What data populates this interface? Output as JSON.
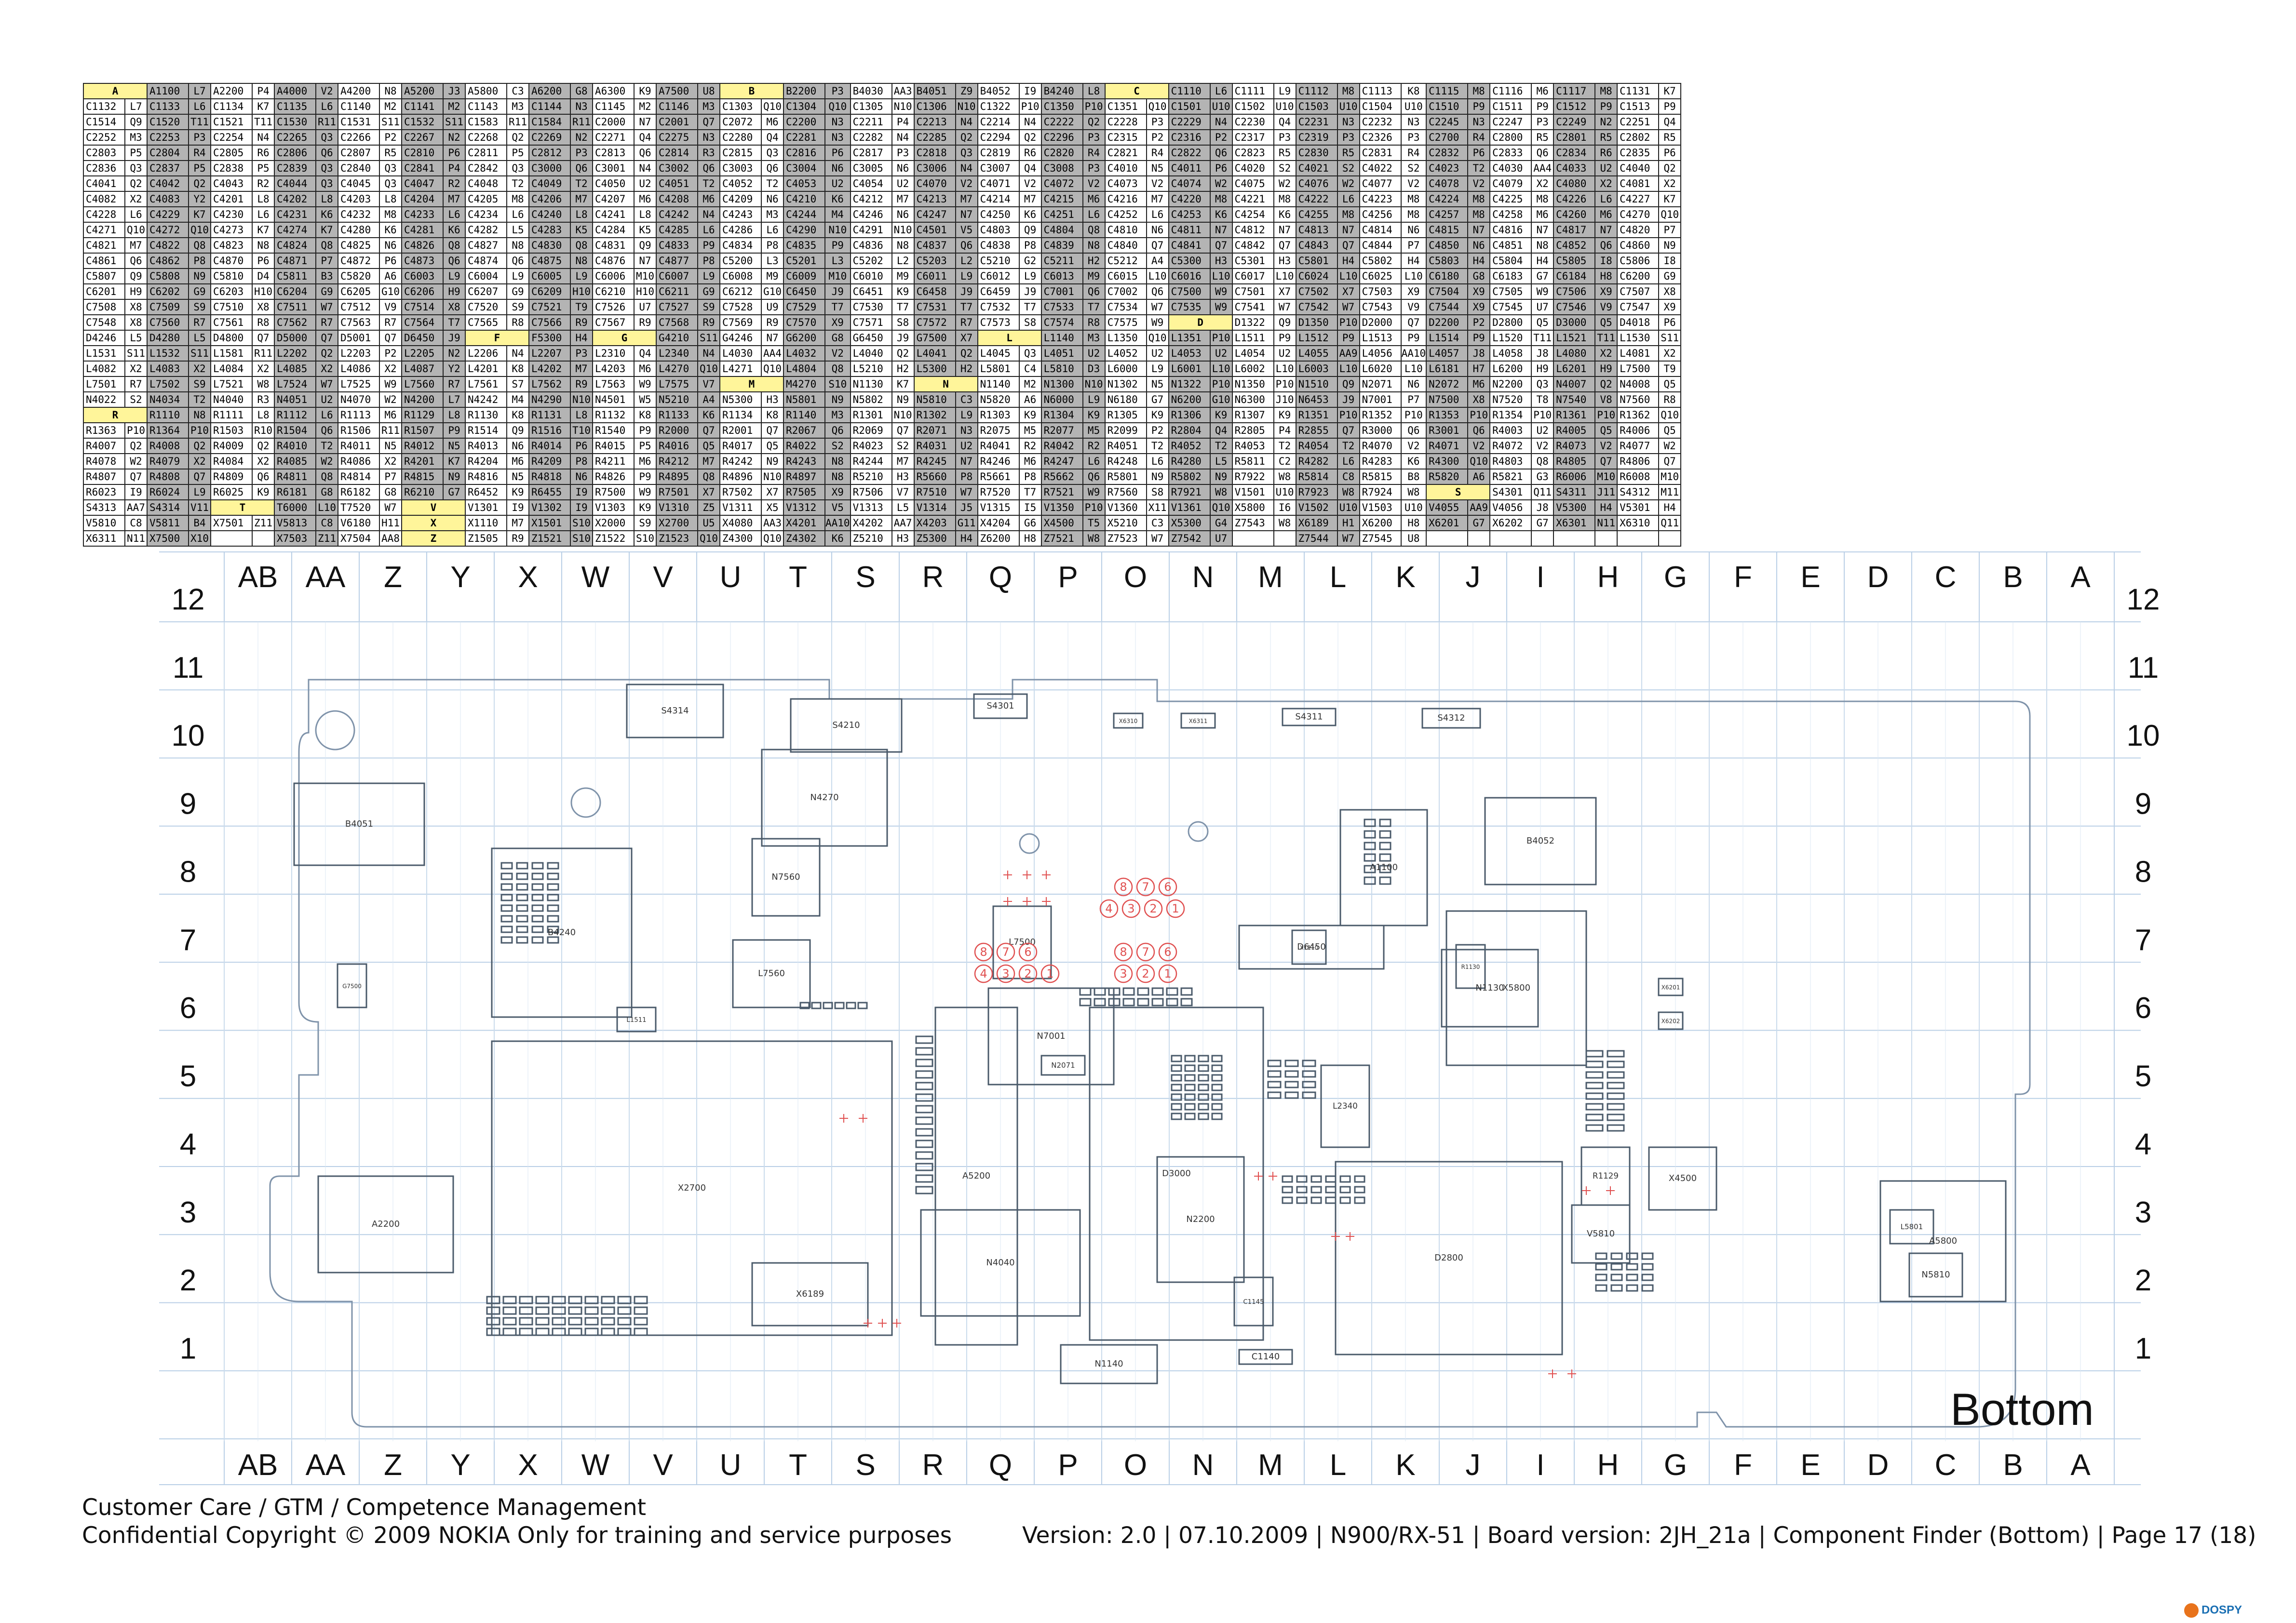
{
  "finder_columns": [
    [
      "A",
      "C1132 L7",
      "C1514 Q9",
      "C2252 M3",
      "C2803 P5",
      "C2836 Q3",
      "C4041 Q2",
      "C4082 X2",
      "C4228 L6",
      "C4271 Q10",
      "C4821 M7",
      "C4861 Q6",
      "C5807 Q9",
      "C6201 H9",
      "C7508 X8",
      "C7548 X8",
      "D4246 L5",
      "L1531 S11",
      "L4082 X2",
      "L7501 R7",
      "N4022 S2",
      "R",
      "R1363 P10",
      "R4007 Q2",
      "R4078 W2",
      "R4807 Q7",
      "R6023 I9",
      "S4313 AA7",
      "V5810 C8",
      "X6311 N11"
    ],
    [
      "A1100 L7",
      "C1133 L6",
      "C1520 T11",
      "C2253 P3",
      "C2804 R4",
      "C2837 P5",
      "C4042 Q2",
      "C4083 Y2",
      "C4229 K7",
      "C4272 Q10",
      "C4822 Q8",
      "C4862 P8",
      "C5808 N9",
      "C6202 G9",
      "C7509 S9",
      "C7560 R7",
      "D4280 L5",
      "L1532 S11",
      "L4083 X2",
      "L7502 S9",
      "N4034 T2",
      "R1110 N8",
      "R1364 P10",
      "R4008 Q2",
      "R4079 X2",
      "R4808 Q7",
      "R6024 L9",
      "S4314 V11",
      "V5811 B4",
      "X7500 X10"
    ],
    [
      "A2200 P4",
      "C1134 K7",
      "C1521 T11",
      "C2254 N4",
      "C2805 R6",
      "C2838 P5",
      "C4043 R2",
      "C4201 L8",
      "C4230 L6",
      "C4273 K7",
      "C4823 N8",
      "C4870 P6",
      "C5810 D4",
      "C6203 H10",
      "C7510 X8",
      "C7561 R8",
      "D4800 Q7",
      "L1581 R11",
      "L4084 X2",
      "L7521 W8",
      "N4040 R3",
      "R1111 L8",
      "R1503 R10",
      "R4009 Q2",
      "R4084 X2",
      "R4809 Q6",
      "R6025 K9",
      "T",
      "X7501 Z11"
    ],
    [
      "A4000 V2",
      "C1135 L6",
      "C1530 R11",
      "C2265 Q3",
      "C2806 Q6",
      "C2839 Q3",
      "C4044 Q3",
      "C4202 L8",
      "C4231 K6",
      "C4274 K7",
      "C4824 Q8",
      "C4871 P7",
      "C5811 B3",
      "C6204 G9",
      "C7511 W7",
      "C7562 R7",
      "D5000 Q7",
      "L2202 Q2",
      "L4085 X2",
      "L7524 W7",
      "N4051 U2",
      "R1112 L6",
      "R1504 Q6",
      "R4010 T2",
      "R4085 W2",
      "R4811 Q8",
      "R6181 G8",
      "T6000 L10",
      "V5813 C8",
      "X7503 Z11"
    ],
    [
      "A4200 N8",
      "C1140 M2",
      "C1531 S11",
      "C2266 P2",
      "C2807 R5",
      "C2840 Q3",
      "C4045 Q3",
      "C4203 L8",
      "C4232 M8",
      "C4280 K6",
      "C4825 N6",
      "C4872 P6",
      "C5820 A6",
      "C6205 G10",
      "C7512 V9",
      "C7563 R7",
      "D5001 Q7",
      "L2203 P2",
      "L4086 X2",
      "L7525 W9",
      "N4070 W2",
      "R1113 M6",
      "R1506 R11",
      "R4011 N5",
      "R4086 X2",
      "R4814 P7",
      "R6182 G8",
      "T7520 W7",
      "V6180 H11",
      "X7504 AA8"
    ],
    [
      "A5200 J3",
      "C1141 M2",
      "C1532 S11",
      "C2267 N2",
      "C2810 P6",
      "C2841 P4",
      "C4047 R2",
      "C4204 M7",
      "C4233 L6",
      "C4281 K6",
      "C4826 Q8",
      "C4873 Q6",
      "C6003 L9",
      "C6206 H9",
      "C7514 X8",
      "C7564 T7",
      "D6450 J9",
      "L2205 N2",
      "L4087 Y2",
      "L7560 R7",
      "N4200 L7",
      "R1129 L8",
      "R1507 P9",
      "R4012 N5",
      "R4201 K7",
      "R4815 N9",
      "R6210 G7",
      "V",
      "X",
      "Z"
    ],
    [
      "A5800 C3",
      "C1143 M3",
      "C1583 R11",
      "C2268 Q2",
      "C2811 P5",
      "C2842 Q3",
      "C4048 T2",
      "C4205 M8",
      "C4234 L6",
      "C4282 L5",
      "C4827 N8",
      "C4874 Q6",
      "C6004 L9",
      "C6207 G9",
      "C7520 S9",
      "C7565 R8",
      "F",
      "L2206 N4",
      "L4201 K8",
      "L7561 S7",
      "N4242 M4",
      "R1130 K8",
      "R1514 Q9",
      "R4013 N6",
      "R4204 M6",
      "R4816 N5",
      "R6452 K9",
      "V1301 I9",
      "X1110 M7",
      "Z1505 R9"
    ],
    [
      "A6200 G8",
      "C1144 N3",
      "C1584 R11",
      "C2269 N2",
      "C2812 P3",
      "C3000 Q6",
      "C4049 T2",
      "C4206 M7",
      "C4240 L8",
      "C4283 K5",
      "C4830 Q8",
      "C4875 N8",
      "C6005 L9",
      "C6209 H10",
      "C7521 T9",
      "C7566 R9",
      "F5300 H4",
      "L2207 P3",
      "L4202 M7",
      "L7562 R9",
      "N4290 N10",
      "R1131 L8",
      "R1516 T10",
      "R4014 P6",
      "R4209 P8",
      "R4818 N6",
      "R6455 I9",
      "V1302 I9",
      "X1501 S10",
      "Z1521 S10"
    ],
    [
      "A6300 K9",
      "C1145 M2",
      "C2000 N7",
      "C2271 Q4",
      "C2813 Q6",
      "C3001 N4",
      "C4050 U2",
      "C4207 M6",
      "C4241 L8",
      "C4284 K5",
      "C4831 Q9",
      "C4876 N7",
      "C6006 M10",
      "C6210 H10",
      "C7526 U7",
      "C7567 R9",
      "G",
      "L2310 Q4",
      "L4203 M6",
      "L7563 W9",
      "N4501 W5",
      "R1132 K8",
      "R1540 P9",
      "R4015 P5",
      "R4211 M6",
      "R4826 P9",
      "R7500 W9",
      "V1303 K9",
      "X2000 S9",
      "Z1522 S10"
    ],
    [
      "A7500 U8",
      "C1146 M3",
      "C2001 Q7",
      "C2275 N3",
      "C2814 R3",
      "C3002 Q6",
      "C4051 T2",
      "C4208 M6",
      "C4242 N4",
      "C4285 L6",
      "C4833 P9",
      "C4877 P8",
      "C6007 L9",
      "C6211 G9",
      "C7527 S9",
      "C7568 R9",
      "G4210 S11",
      "L2340 N4",
      "L4270 Q10",
      "L7575 V7",
      "N5210 A4",
      "R1133 K6",
      "R2000 Q7",
      "R4016 Q5",
      "R4212 M7",
      "R4895 Q8",
      "R7501 X7",
      "V1310 Z5",
      "X2700 U5",
      "Z1523 Q10"
    ],
    [
      "B",
      "C1303 Q10",
      "C2072 M6",
      "C2280 Q4",
      "C2815 Q3",
      "C3003 Q6",
      "C4052 T2",
      "C4209 N6",
      "C4243 M3",
      "C4286 L6",
      "C4834 P8",
      "C5200 L3",
      "C6008 M9",
      "C6212 G10",
      "C7528 U9",
      "C7569 R9",
      "G4246 N7",
      "L4030 AA4",
      "L4271 Q10",
      "M",
      "N5300 H3",
      "R1134 K8",
      "R2001 Q7",
      "R4017 Q5",
      "R4242 N9",
      "R4896 N10",
      "R7502 X7",
      "V1311 X5",
      "X4080 AA3",
      "Z4300 Q10"
    ],
    [
      "B2200 P3",
      "C1304 Q10",
      "C2200 N3",
      "C2281 N3",
      "C2816 P6",
      "C3004 N6",
      "C4053 U2",
      "C4210 K6",
      "C4244 M4",
      "C4290 N10",
      "C4835 P9",
      "C5201 L3",
      "C6009 M10",
      "C6450 J9",
      "C7529 T7",
      "C7570 X9",
      "G6200 G8",
      "L4032 V2",
      "L4804 Q8",
      "M4270 S10",
      "N5801 N9",
      "R1140 M3",
      "R2067 Q6",
      "R4022 S2",
      "R4243 N8",
      "R4897 N8",
      "R7505 X9",
      "V1312 V5",
      "X4201 AA10",
      "Z4302 K6"
    ],
    [
      "B4030 AA3",
      "C1305 N10",
      "C2211 P4",
      "C2282 N4",
      "C2817 P3",
      "C3005 N6",
      "C4054 U2",
      "C4212 M7",
      "C4246 N6",
      "C4291 N10",
      "C4836 N8",
      "C5202 L2",
      "C6010 M9",
      "C6451 K9",
      "C7530 T7",
      "C7571 S8",
      "G6450 J9",
      "L4040 Q2",
      "L5210 H2",
      "N1130 K7",
      "N5802 N9",
      "R1301 N10",
      "R2069 Q7",
      "R4023 S2",
      "R4244 M7",
      "R5210 H3",
      "R7506 V7",
      "V1313 L5",
      "X4202 AA7",
      "Z5210 H3"
    ],
    [
      "B4051 Z9",
      "C1306 N10",
      "C2213 N4",
      "C2285 Q2",
      "C2818 Q3",
      "C3006 N4",
      "C4070 V2",
      "C4213 M7",
      "C4247 N7",
      "C4501 V5",
      "C4837 Q6",
      "C5203 L2",
      "C6011 L9",
      "C6458 J9",
      "C7531 T7",
      "C7572 R7",
      "G7500 X7",
      "L4041 Q2",
      "L5300 H2",
      "N",
      "N5810 C3",
      "R1302 L9",
      "R2071 N3",
      "R4031 U2",
      "R4245 N7",
      "R5660 P8",
      "R7510 W7",
      "V1314 J5",
      "X4203 G11",
      "Z5300 H4"
    ],
    [
      "B4052 I9",
      "C1322 P10",
      "C2214 N4",
      "C2294 Q2",
      "C2819 R6",
      "C3007 Q4",
      "C4071 V2",
      "C4214 M7",
      "C4250 K6",
      "C4803 Q9",
      "C4838 P8",
      "C5210 G2",
      "C6012 L9",
      "C6459 J9",
      "C7532 T7",
      "C7573 S8",
      "L",
      "L4045 Q3",
      "L5801 C4",
      "N1140 M2",
      "N5820 A6",
      "R1303 K9",
      "R2075 M5",
      "R4041 R2",
      "R4246 M6",
      "R5661 P8",
      "R7520 T7",
      "V1315 I5",
      "X4204 G6",
      "Z6200 H8"
    ],
    [
      "B4240 L8",
      "C1350 P10",
      "C2222 Q2",
      "C2296 P3",
      "C2820 R4",
      "C3008 P3",
      "C4072 V2",
      "C4215 M6",
      "C4251 L6",
      "C4804 Q8",
      "C4839 N8",
      "C5211 H2",
      "C6013 M9",
      "C7001 Q6",
      "C7533 T7",
      "C7574 R8",
      "L1140 M3",
      "L4051 U2",
      "L5810 D3",
      "N1300 N10",
      "N6000 L9",
      "R1304 K9",
      "R2077 M5",
      "R4042 R2",
      "R4247 L6",
      "R5662 Q6",
      "R7521 W9",
      "V1350 P10",
      "X4500 T5",
      "Z7521 W8"
    ],
    [
      "C",
      "C1351 Q10",
      "C2228 P3",
      "C2315 P2",
      "C2821 R4",
      "C4010 N5",
      "C4073 V2",
      "C4216 M7",
      "C4252 L6",
      "C4810 N6",
      "C4840 Q7",
      "C5212 A4",
      "C6015 L10",
      "C7002 Q6",
      "C7534 W7",
      "C7575 W9",
      "L1350 Q10",
      "L4052 U2",
      "L6000 L9",
      "N1302 N5",
      "N6180 G7",
      "R1305 K9",
      "R2099 P2",
      "R4051 T2",
      "R4248 L6",
      "R5801 N9",
      "R7560 S8",
      "V1360 X11",
      "X5210 C3",
      "Z7523 W7"
    ],
    [
      "C1110 L6",
      "C1501 U10",
      "C2229 N4",
      "C2316 P2",
      "C2822 Q6",
      "C4011 P6",
      "C4074 W2",
      "C4220 M8",
      "C4253 K6",
      "C4811 N7",
      "C4841 Q7",
      "C5300 H3",
      "C6016 L10",
      "C7500 W9",
      "C7535 W9",
      "D",
      "L1351 P10",
      "L4053 U2",
      "L6001 L10",
      "N1322 P10",
      "N6200 G10",
      "R1306 K9",
      "R2804 Q4",
      "R4052 T2",
      "R4280 L5",
      "R5802 N9",
      "R7921 W8",
      "V1361 Q10",
      "X5300 G4",
      "Z7542 U7"
    ],
    [
      "C1111 L9",
      "C1502 U10",
      "C2230 Q4",
      "C2317 P3",
      "C2823 R5",
      "C4020 S2",
      "C4075 W2",
      "C4221 M8",
      "C4254 K6",
      "C4812 N7",
      "C4842 Q7",
      "C5301 H3",
      "C6017 L10",
      "C7501 X7",
      "C7541 W7",
      "D1322 Q9",
      "L1511 P9",
      "L4054 U2",
      "L6002 L10",
      "N1350 P10",
      "N6300 J10",
      "R1307 K9",
      "R2805 P4",
      "R4053 T2",
      "R5811 C2",
      "R7922 W8",
      "V1501 U10",
      "X5800 I6",
      "Z7543 W8"
    ],
    [
      "C1112 M8",
      "C1503 U10",
      "C2231 N3",
      "C2319 P3",
      "C2830 R5",
      "C4021 S2",
      "C4076 W2",
      "C4222 L6",
      "C4255 M8",
      "C4813 N7",
      "C4843 Q7",
      "C5801 H4",
      "C6024 L10",
      "C7502 X7",
      "C7542 W7",
      "D1350 P10",
      "L1512 P9",
      "L4055 AA9",
      "L6003 L10",
      "N1510 Q9",
      "N6453 J9",
      "R1351 P10",
      "R2855 Q7",
      "R4054 T2",
      "R4282 L6",
      "R5814 C8",
      "R7923 W8",
      "V1502 U10",
      "X6189 H1",
      "Z7544 W7"
    ],
    [
      "C1113 K8",
      "C1504 U10",
      "C2232 N3",
      "C2326 P3",
      "C2831 R4",
      "C4022 S2",
      "C4077 V2",
      "C4223 M8",
      "C4256 M8",
      "C4814 N6",
      "C4844 P7",
      "C5802 H4",
      "C6025 L10",
      "C7503 X9",
      "C7543 V9",
      "D2000 Q7",
      "L1513 P9",
      "L4056 AA10",
      "L6020 L10",
      "N2071 N6",
      "N7001 P7",
      "R1352 P10",
      "R3000 Q6",
      "R4070 V2",
      "R4283 K6",
      "R5815 B8",
      "R7924 W8",
      "V1503 U10",
      "X6200 H8",
      "Z7545 U8"
    ],
    [
      "C1115 M8",
      "C1510 P9",
      "C2245 N3",
      "C2700 R4",
      "C2832 P6",
      "C4023 T2",
      "C4078 V2",
      "C4224 M8",
      "C4257 M8",
      "C4815 N7",
      "C4850 N6",
      "C5803 H4",
      "C6180 G8",
      "C7504 X9",
      "C7544 X9",
      "D2200 P2",
      "L1514 P9",
      "L4057 J8",
      "L6181 H7",
      "N2072 M6",
      "N7500 X8",
      "R1353 P10",
      "R3001 Q6",
      "R4071 V2",
      "R4300 Q10",
      "R5820 A6",
      "S",
      "V4055 AA9",
      "X6201 G7"
    ],
    [
      "C1116 M6",
      "C1511 P9",
      "C2247 P3",
      "C2800 R5",
      "C2833 Q6",
      "C4030 AA4",
      "C4079 X2",
      "C4225 M8",
      "C4258 M6",
      "C4816 N7",
      "C4851 N8",
      "C5804 H4",
      "C6183 G7",
      "C7505 W9",
      "C7545 U7",
      "D2800 Q5",
      "L1520 T11",
      "L4058 J8",
      "L6200 H9",
      "N2200 Q3",
      "N7520 T8",
      "R1354 P10",
      "R4003 U2",
      "R4072 V2",
      "R4803 Q8",
      "R5821 G3",
      "S4301 Q11",
      "V4056 J8",
      "X6202 G7"
    ],
    [
      "C1117 M8",
      "C1512 P9",
      "C2249 N2",
      "C2801 R5",
      "C2834 R6",
      "C4033 U2",
      "C4080 X2",
      "C4226 L6",
      "C4260 M6",
      "C4817 N7",
      "C4852 Q6",
      "C5805 I8",
      "C6184 H8",
      "C7506 X9",
      "C7546 V9",
      "D3000 Q5",
      "L1521 T11",
      "L4080 X2",
      "L6201 H9",
      "N4007 Q2",
      "N7540 V8",
      "R1361 P10",
      "R4005 Q5",
      "R4073 V2",
      "R4805 Q7",
      "R6006 M10",
      "S4311 J11",
      "V5300 H4",
      "X6301 N11"
    ],
    [
      "C1131 K7",
      "C1513 P9",
      "C2251 Q4",
      "C2802 R5",
      "C2835 P6",
      "C4040 Q2",
      "C4081 X2",
      "C4227 K7",
      "C4270 Q10",
      "C4820 P7",
      "C4860 N9",
      "C5806 I8",
      "C6200 G9",
      "C7507 X8",
      "C7547 X9",
      "D4018 P6",
      "L1530 S11",
      "L4081 X2",
      "L7500 T9",
      "N4008 Q5",
      "N7560 R8",
      "R1362 Q10",
      "R4006 Q5",
      "R4077 W2",
      "R4806 Q7",
      "R6008 M10",
      "S4312 M11",
      "V5301 H4",
      "X6310 Q11"
    ]
  ],
  "grid": {
    "columns": [
      "AB",
      "AA",
      "Z",
      "Y",
      "X",
      "W",
      "V",
      "U",
      "T",
      "S",
      "R",
      "Q",
      "P",
      "O",
      "N",
      "M",
      "L",
      "K",
      "J",
      "I",
      "H",
      "G",
      "F",
      "E",
      "D",
      "C",
      "B",
      "A"
    ],
    "rows": [
      "12",
      "11",
      "10",
      "9",
      "8",
      "7",
      "6",
      "5",
      "4",
      "3",
      "2",
      "1"
    ]
  },
  "board_components": [
    {
      "label": "S4314"
    },
    {
      "label": "S4301"
    },
    {
      "label": "S4311"
    },
    {
      "label": "S4312"
    },
    {
      "label": "X6310"
    },
    {
      "label": "X6311"
    },
    {
      "label": "B4051"
    },
    {
      "label": "B4052"
    },
    {
      "label": "N4270"
    },
    {
      "label": "S4210"
    },
    {
      "label": "A1100"
    },
    {
      "label": "X2700"
    },
    {
      "label": "D2800"
    },
    {
      "label": "D3000"
    },
    {
      "label": "N1130"
    },
    {
      "label": "X5800"
    },
    {
      "label": "A5800"
    },
    {
      "label": "L5801"
    },
    {
      "label": "N5810"
    },
    {
      "label": "A2200"
    },
    {
      "label": "A5200"
    },
    {
      "label": "N4040"
    },
    {
      "label": "N2200"
    },
    {
      "label": "N7001"
    },
    {
      "label": "N7560"
    },
    {
      "label": "L7560"
    },
    {
      "label": "L7500"
    },
    {
      "label": "N1140"
    },
    {
      "label": "C1140"
    },
    {
      "label": "C1145"
    },
    {
      "label": "X6201"
    },
    {
      "label": "X6202"
    },
    {
      "label": "X4500"
    },
    {
      "label": "G7500"
    },
    {
      "label": "B4240"
    },
    {
      "label": "L1511"
    },
    {
      "label": "R1129"
    },
    {
      "label": "R1130"
    },
    {
      "label": "N2071"
    },
    {
      "label": "D6450"
    },
    {
      "label": "X1110"
    },
    {
      "label": "L2340"
    },
    {
      "label": "V5810"
    },
    {
      "label": "X6189"
    }
  ],
  "test_points": [
    {
      "labels": [
        "8",
        "7",
        "6"
      ]
    },
    {
      "labels": [
        "4",
        "3",
        "2",
        "1"
      ]
    },
    {
      "labels": [
        "8",
        "7",
        "6"
      ]
    },
    {
      "labels": [
        "4",
        "3",
        "2",
        "1"
      ]
    },
    {
      "labels": [
        "8",
        "7",
        "6"
      ]
    },
    {
      "labels": [
        "3",
        "2",
        "1"
      ]
    }
  ],
  "bottom_label": "Bottom",
  "footer": {
    "line1": "Customer Care / GTM / Competence Management",
    "line2": "Confidential Copyright © 2009 NOKIA Only for training and service purposes",
    "info": "Version: 2.0  |  07.10.2009  |  N900/RX-51  |  Board version: 2JH_21a  | Component Finder (Bottom) |  Page 17 (18)"
  },
  "watermark": "DOSPY",
  "colors": {
    "header_yellow": "#fff59a",
    "grey_cell": "#b4b4b4",
    "grid_line": "#a8c8e8",
    "outline": "#8aa0b8",
    "testpoint_red": "#e05050"
  }
}
